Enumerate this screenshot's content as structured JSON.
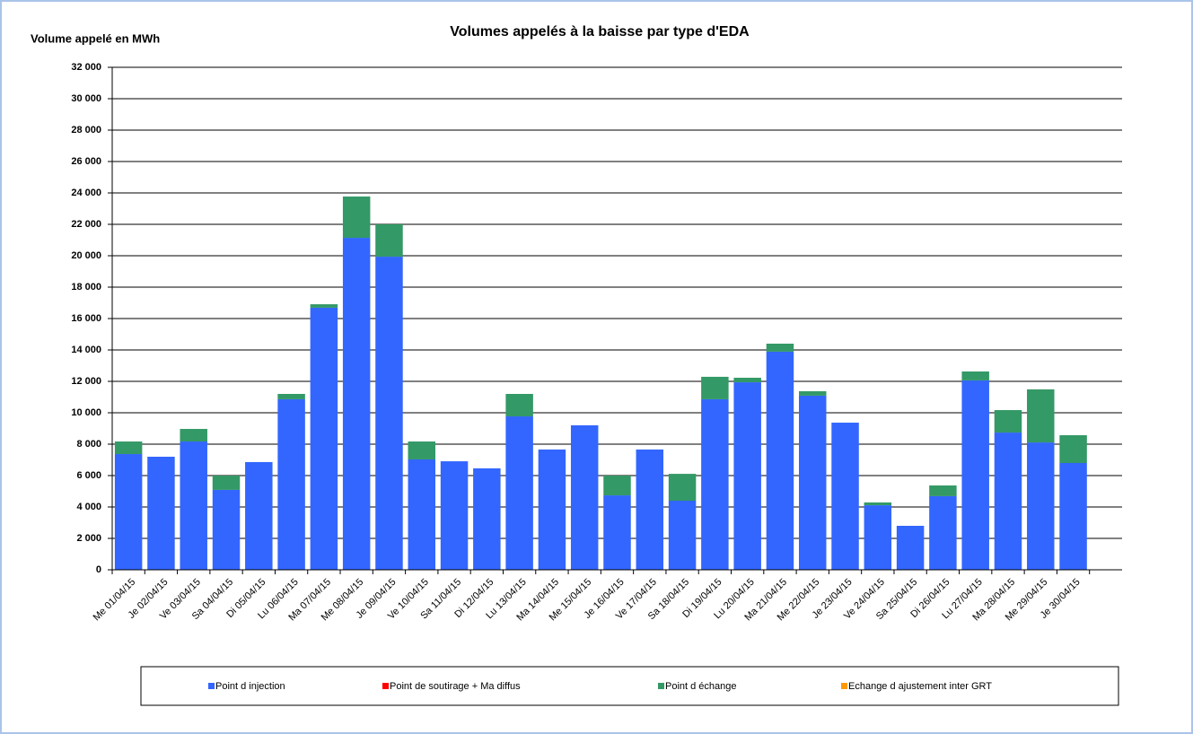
{
  "chart_data": {
    "type": "stacked_bar",
    "title": "Volumes appelés à la baisse par type d'EDA",
    "y_label": "Volume appelé en MWh",
    "categories": [
      "Me 01/04/15",
      "Je 02/04/15",
      "Ve 03/04/15",
      "Sa 04/04/15",
      "Di 05/04/15",
      "Lu 06/04/15",
      "Ma 07/04/15",
      "Me 08/04/15",
      "Je 09/04/15",
      "Ve 10/04/15",
      "Sa 11/04/15",
      "Di 12/04/15",
      "Lu 13/04/15",
      "Ma 14/04/15",
      "Me 15/04/15",
      "Je 16/04/15",
      "Ve 17/04/15",
      "Sa 18/04/15",
      "Di 19/04/15",
      "Lu 20/04/15",
      "Ma 21/04/15",
      "Me 22/04/15",
      "Je 23/04/15",
      "Ve 24/04/15",
      "Sa 25/04/15",
      "Di 26/04/15",
      "Lu 27/04/15",
      "Ma 28/04/15",
      "Me 29/04/15",
      "Je 30/04/15",
      null
    ],
    "series": [
      {
        "name": "Point d injection",
        "color": "#3366ff",
        "values": [
          7370,
          7200,
          8170,
          5090,
          6860,
          10860,
          16690,
          21140,
          19940,
          7030,
          6910,
          6460,
          9770,
          7660,
          9200,
          4740,
          7660,
          4400,
          10860,
          11940,
          13890,
          11090,
          9370,
          4110,
          2800,
          4690,
          12060,
          8740,
          8110,
          6800,
          null
        ]
      },
      {
        "name": "Point de soutirage + Ma diffus",
        "color": "#ff0000",
        "values": [
          0,
          0,
          0,
          0,
          0,
          0,
          0,
          0,
          0,
          0,
          0,
          0,
          0,
          0,
          0,
          0,
          0,
          0,
          0,
          0,
          0,
          0,
          0,
          0,
          0,
          0,
          0,
          0,
          0,
          0,
          null
        ]
      },
      {
        "name": "Point d échange",
        "color": "#339966",
        "values": [
          800,
          0,
          800,
          910,
          0,
          340,
          220,
          2630,
          2060,
          1140,
          0,
          0,
          1430,
          0,
          0,
          1260,
          0,
          1710,
          1430,
          290,
          510,
          280,
          0,
          180,
          0,
          680,
          570,
          1430,
          3380,
          1770,
          null
        ]
      },
      {
        "name": "Echange d ajustement inter GRT",
        "color": "#ff9900",
        "values": [
          0,
          0,
          0,
          0,
          0,
          0,
          0,
          0,
          0,
          0,
          0,
          0,
          0,
          0,
          0,
          0,
          0,
          0,
          0,
          0,
          0,
          0,
          0,
          0,
          0,
          0,
          0,
          0,
          0,
          0,
          null
        ]
      }
    ],
    "ylim": [
      0,
      32000
    ],
    "yticks": [
      0,
      {
        "value": 2000,
        "label": "2 000"
      },
      {
        "value": 4000,
        "label": "4 000"
      },
      {
        "value": 6000,
        "label": "6 000"
      },
      {
        "value": 8000,
        "label": "8 000"
      },
      {
        "value": 10000,
        "label": "10 000"
      },
      {
        "value": 12000,
        "label": "12 000"
      },
      {
        "value": 14000,
        "label": "14 000"
      },
      {
        "value": 16000,
        "label": "16 000"
      },
      {
        "value": 18000,
        "label": "18 000"
      },
      {
        "value": 20000,
        "label": "20 000"
      },
      {
        "value": 22000,
        "label": "22 000"
      },
      {
        "value": 24000,
        "label": "24 000"
      },
      {
        "value": 26000,
        "label": "26 000"
      },
      {
        "value": 28000,
        "label": "28 000"
      },
      {
        "value": 30000,
        "label": "30 000"
      },
      {
        "value": 32000,
        "label": "32 000"
      }
    ],
    "grid": true,
    "legend": "bottom"
  }
}
